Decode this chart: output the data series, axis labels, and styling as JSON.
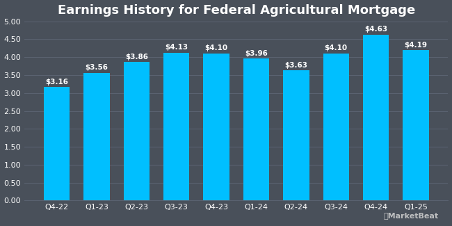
{
  "title": "Earnings History for Federal Agricultural Mortgage",
  "categories": [
    "Q4-22",
    "Q1-23",
    "Q2-23",
    "Q3-23",
    "Q4-23",
    "Q1-24",
    "Q2-24",
    "Q3-24",
    "Q4-24",
    "Q1-25"
  ],
  "values": [
    3.16,
    3.56,
    3.86,
    4.13,
    4.1,
    3.96,
    3.63,
    4.1,
    4.63,
    4.19
  ],
  "bar_color": "#00BFFF",
  "background_color": "#49505A",
  "plot_bg_color": "#49505A",
  "grid_color": "#5a6270",
  "text_color": "#ffffff",
  "title_fontsize": 13,
  "label_fontsize": 7.5,
  "tick_fontsize": 8,
  "ylim": [
    0,
    5.0
  ],
  "yticks": [
    0.0,
    0.5,
    1.0,
    1.5,
    2.0,
    2.5,
    3.0,
    3.5,
    4.0,
    4.5,
    5.0
  ],
  "bar_label_prefix": "$",
  "watermark": "MarketBeat"
}
